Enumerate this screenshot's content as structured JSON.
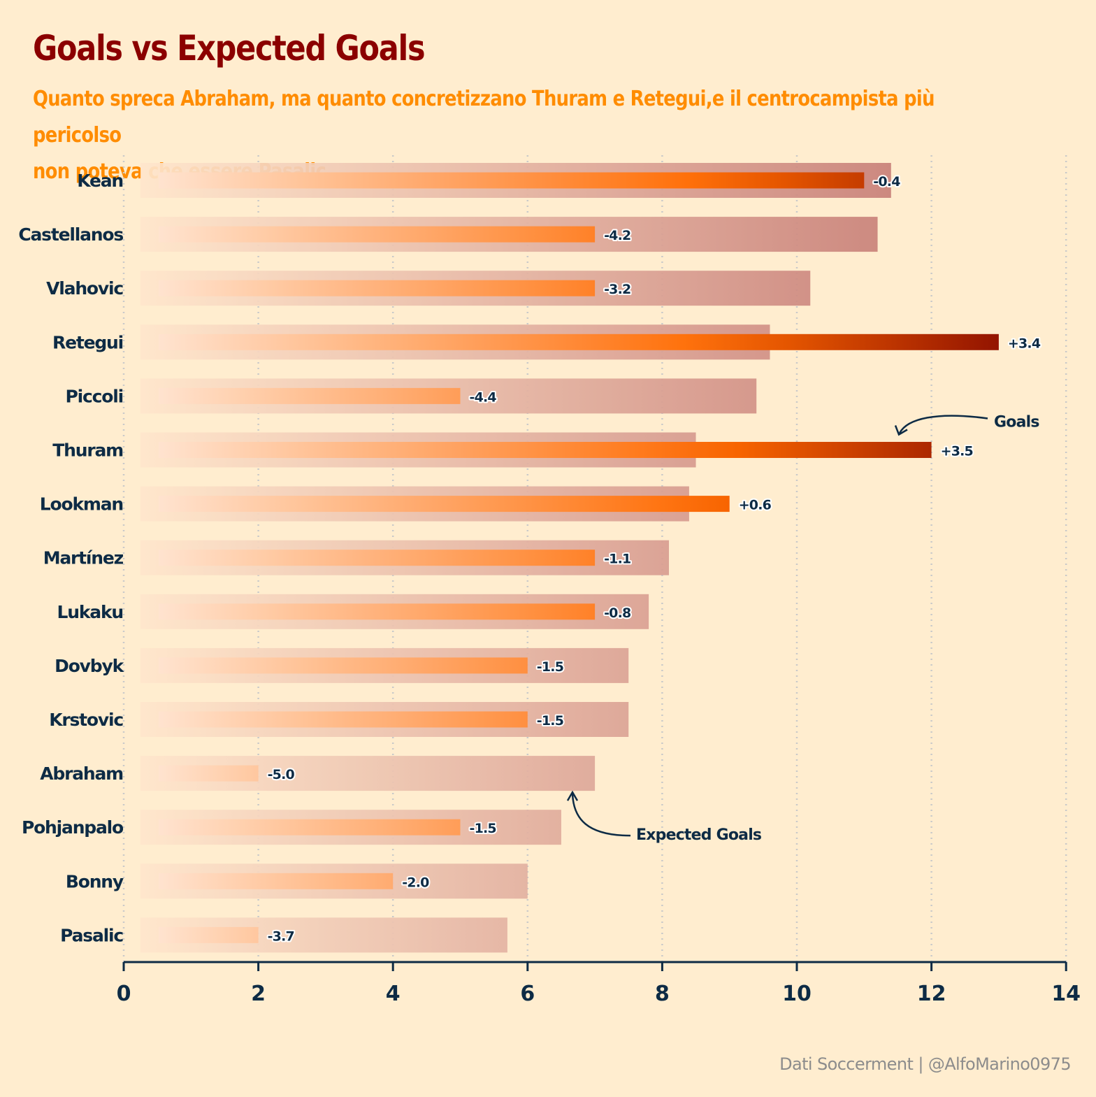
{
  "title": "Goals vs Expected Goals",
  "subtitle_lines": [
    "Quanto spreca Abraham, ma quanto concretizzano Thuram e Retegui,e il centrocampista più pericolso",
    "non poteva che essere Pasalic"
  ],
  "credit": {
    "source": "Dati Soccerment",
    "separator": "|",
    "author": "@AlfoMarino0975"
  },
  "colors": {
    "background": "#ffedcf",
    "title": "#8b0000",
    "subtitle": "#ff8c00",
    "text": "#0d2b45",
    "goals_low": "#ffe3cf",
    "goals_mid": "#ff6a00",
    "goals_high": "#7a0000",
    "xg_low": "#ffe6cc",
    "xg_high": "#c87f78"
  },
  "chart_data": {
    "type": "bar",
    "orientation": "horizontal",
    "categories": [
      "Kean",
      "Castellanos",
      "Vlahovic",
      "Retegui",
      "Piccoli",
      "Thuram",
      "Lookman",
      "Martínez",
      "Lukaku",
      "Dovbyk",
      "Krstovic",
      "Abraham",
      "Pohjanpalo",
      "Bonny",
      "Pasalic"
    ],
    "series": [
      {
        "name": "Goals",
        "values": [
          11,
          7,
          7,
          13,
          5,
          12,
          9,
          7,
          7,
          6,
          6,
          2,
          5,
          4,
          2
        ]
      },
      {
        "name": "Expected Goals",
        "values": [
          11.4,
          11.2,
          10.2,
          9.6,
          9.4,
          8.5,
          8.4,
          8.1,
          7.8,
          7.5,
          7.5,
          7.0,
          6.5,
          6.0,
          5.7
        ]
      }
    ],
    "difference_labels": [
      "-0.4",
      "-4.2",
      "-3.2",
      "+3.4",
      "-4.4",
      "+3.5",
      "+0.6",
      "-1.1",
      "-0.8",
      "-1.5",
      "-1.5",
      "-5.0",
      "-1.5",
      "-2.0",
      "-3.7"
    ],
    "x_ticks": [
      0,
      2,
      4,
      6,
      8,
      10,
      12,
      14
    ],
    "xlim": [
      0,
      14
    ],
    "grid": "vertical dotted",
    "annotations": [
      {
        "text": "Goals",
        "points_to": "Thuram"
      },
      {
        "text": "Expected Goals",
        "points_to": "Abraham"
      }
    ]
  }
}
